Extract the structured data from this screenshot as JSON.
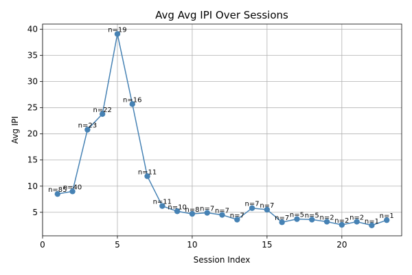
{
  "chart_data": {
    "type": "line",
    "title": "Avg Avg IPI Over Sessions",
    "xlabel": "Session Index",
    "ylabel": "Avg IPI",
    "xlim": [
      0,
      24
    ],
    "ylim": [
      0.5,
      41
    ],
    "xticks": [
      0,
      5,
      10,
      15,
      20
    ],
    "yticks": [
      5,
      10,
      15,
      20,
      25,
      30,
      35,
      40
    ],
    "grid": true,
    "color": "#4682b4",
    "series": [
      {
        "x": [
          1,
          2,
          3,
          4,
          5,
          6,
          7,
          8,
          9,
          10,
          11,
          12,
          13,
          14,
          15,
          16,
          17,
          18,
          19,
          20,
          21,
          22,
          23
        ],
        "values": [
          8.5,
          9.0,
          20.8,
          23.8,
          39.1,
          25.7,
          11.9,
          6.2,
          5.2,
          4.7,
          4.9,
          4.5,
          3.6,
          5.8,
          5.5,
          3.1,
          3.7,
          3.6,
          3.2,
          2.6,
          3.2,
          2.5,
          3.5
        ],
        "labels": [
          "n=85",
          "n=40",
          "n=23",
          "n=22",
          "n=19",
          "n=16",
          "n=11",
          "n=11",
          "n=10",
          "n=8",
          "n=7",
          "n=7",
          "n=7",
          "n=7",
          "n=7",
          "n=7",
          "n=5",
          "n=5",
          "n=2",
          "n=2",
          "n=2",
          "n=1",
          "n=1"
        ]
      }
    ]
  }
}
